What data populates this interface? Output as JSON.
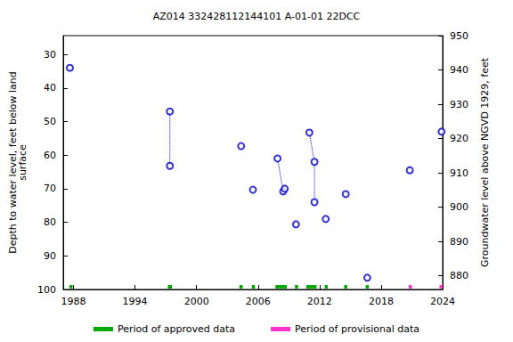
{
  "chart_data": {
    "type": "scatter",
    "title": "AZ014 332428112144101 A-01-01 22DCC",
    "y_label": "Depth to water level, feet below land\nsurface",
    "y2_label": "Groundwater level above NGVD 1929, feet",
    "xlim": [
      1987,
      2024
    ],
    "xticks": [
      1988,
      1994,
      2000,
      2006,
      2012,
      2018,
      2024
    ],
    "ylim": [
      24.4,
      100
    ],
    "yticks": [
      30,
      40,
      50,
      60,
      70,
      80,
      90,
      100
    ],
    "y2lim": [
      876,
      950
    ],
    "y2ticks": [
      880,
      890,
      900,
      910,
      920,
      930,
      940,
      950
    ],
    "grid": false,
    "legend": "bottom",
    "series": [
      {
        "type": "scatter",
        "marker": "emptyCircle",
        "color": "#0000cc",
        "x": [
          1987.65,
          1997.4,
          1997.4,
          2004.35,
          2005.5,
          2007.9,
          2008.45,
          2008.6,
          2009.7,
          2011.0,
          2011.5,
          2011.5,
          2012.6,
          2014.55,
          2016.65,
          2020.8,
          2023.9
        ],
        "values": [
          34,
          47,
          63.2,
          57.3,
          70.3,
          61,
          70.8,
          70,
          80.6,
          53.3,
          62,
          74,
          79,
          71.6,
          96.5,
          64.5,
          53
        ]
      },
      {
        "type": "line",
        "line_style": "dotted",
        "color": "#0000cc",
        "x": [
          1997.4,
          1997.4
        ],
        "values": [
          47,
          63.2
        ]
      },
      {
        "type": "line",
        "line_style": "dotted",
        "color": "#0000cc",
        "x": [
          2007.9,
          2008.45,
          2008.6
        ],
        "values": [
          61,
          70.8,
          70
        ]
      },
      {
        "type": "line",
        "line_style": "dotted",
        "color": "#0000cc",
        "x": [
          2011.0,
          2011.5,
          2011.5
        ],
        "values": [
          53.3,
          62,
          74
        ]
      }
    ],
    "periods": [
      {
        "name": "Period of approved data",
        "color": "#00aa00",
        "ranges": [
          [
            1987.6,
            1987.9
          ],
          [
            1997.2,
            1997.6
          ],
          [
            2004.2,
            2004.5
          ],
          [
            2005.4,
            2005.7
          ],
          [
            2007.7,
            2008.8
          ],
          [
            2009.6,
            2009.9
          ],
          [
            2010.7,
            2011.7
          ],
          [
            2012.5,
            2012.8
          ],
          [
            2014.4,
            2014.7
          ],
          [
            2016.5,
            2016.8
          ]
        ]
      },
      {
        "name": "Period of provisional data",
        "color": "#ff33cc",
        "ranges": [
          [
            2020.7,
            2021.0
          ],
          [
            2023.7,
            2024.0
          ]
        ]
      }
    ]
  }
}
